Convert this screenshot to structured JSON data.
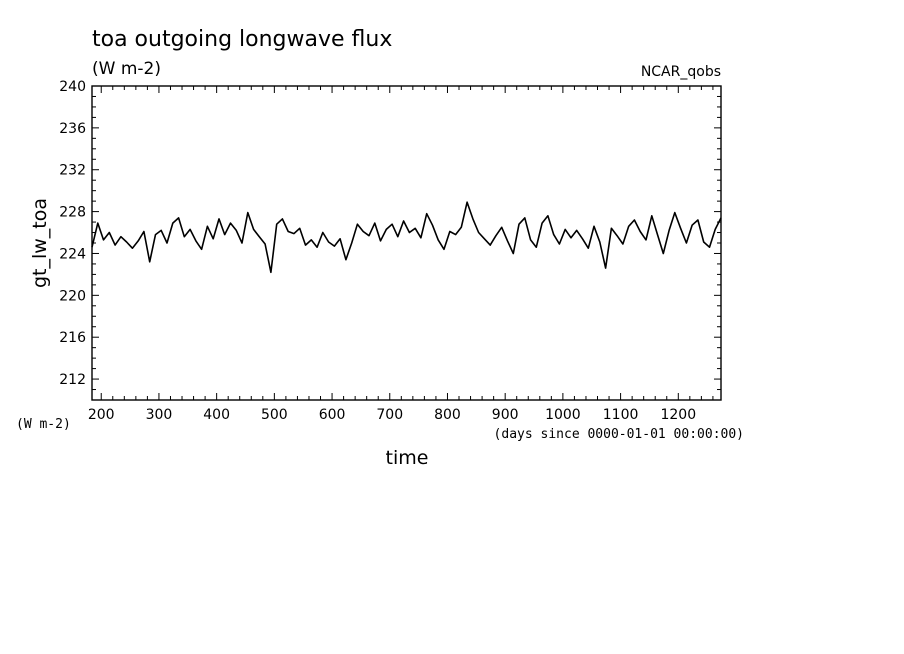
{
  "chart_data": {
    "type": "line",
    "title": "toa outgoing longwave flux",
    "subtitle": "(W m-2)",
    "source_tag": "NCAR_qobs",
    "ylabel": "gt_lw_toa",
    "ylabel_units": "(W m-2)",
    "xlabel": "time",
    "xlabel_units": "(days since 0000-01-01 00:00:00)",
    "xlim": [
      184,
      1274
    ],
    "ylim": [
      210,
      240
    ],
    "xticks": [
      200,
      300,
      400,
      500,
      600,
      700,
      800,
      900,
      1000,
      1100,
      1200
    ],
    "yticks": [
      212,
      216,
      220,
      224,
      228,
      232,
      236,
      240
    ],
    "grid": false,
    "line_color": "#000000",
    "series": [
      {
        "x": [
          184,
          194,
          204,
          214,
          224,
          234,
          244,
          254,
          264,
          274,
          284,
          294,
          304,
          314,
          324,
          334,
          344,
          354,
          364,
          374,
          384,
          394,
          404,
          414,
          424,
          434,
          444,
          454,
          464,
          474,
          484,
          494,
          504,
          514,
          524,
          534,
          544,
          554,
          564,
          574,
          584,
          594,
          604,
          614,
          624,
          634,
          644,
          654,
          664,
          674,
          684,
          694,
          704,
          714,
          724,
          734,
          744,
          754,
          764,
          774,
          784,
          794,
          804,
          814,
          824,
          834,
          844,
          854,
          864,
          874,
          884,
          894,
          904,
          914,
          924,
          934,
          944,
          954,
          964,
          974,
          984,
          994,
          1004,
          1014,
          1024,
          1034,
          1044,
          1054,
          1064,
          1074,
          1084,
          1094,
          1104,
          1114,
          1124,
          1134,
          1144,
          1154,
          1164,
          1174,
          1184,
          1194,
          1204,
          1214,
          1224,
          1234,
          1244,
          1254,
          1264,
          1274
        ],
        "y": [
          224.6,
          226.9,
          225.3,
          226.0,
          224.8,
          225.6,
          225.1,
          224.5,
          225.2,
          226.1,
          223.2,
          225.8,
          226.2,
          225.0,
          226.9,
          227.4,
          225.6,
          226.3,
          225.2,
          224.4,
          226.6,
          225.4,
          227.3,
          225.8,
          226.9,
          226.2,
          225.0,
          227.9,
          226.3,
          225.6,
          224.9,
          222.2,
          226.8,
          227.3,
          226.1,
          225.9,
          226.4,
          224.8,
          225.3,
          224.6,
          226.0,
          225.1,
          224.7,
          225.4,
          223.4,
          225.0,
          226.8,
          226.1,
          225.7,
          226.9,
          225.2,
          226.3,
          226.8,
          225.6,
          227.1,
          226.0,
          226.4,
          225.5,
          227.8,
          226.7,
          225.3,
          224.4,
          226.1,
          225.8,
          226.5,
          228.9,
          227.3,
          226.0,
          225.4,
          224.8,
          225.7,
          226.5,
          225.2,
          224.0,
          226.8,
          227.4,
          225.3,
          224.6,
          226.9,
          227.6,
          225.8,
          224.9,
          226.3,
          225.5,
          226.2,
          225.4,
          224.5,
          226.6,
          225.1,
          222.6,
          226.4,
          225.7,
          224.9,
          226.6,
          227.2,
          226.1,
          225.3,
          227.6,
          225.8,
          224.0,
          226.2,
          227.9,
          226.4,
          225.0,
          226.7,
          227.2,
          225.1,
          224.6,
          226.3,
          227.4
        ]
      }
    ]
  }
}
